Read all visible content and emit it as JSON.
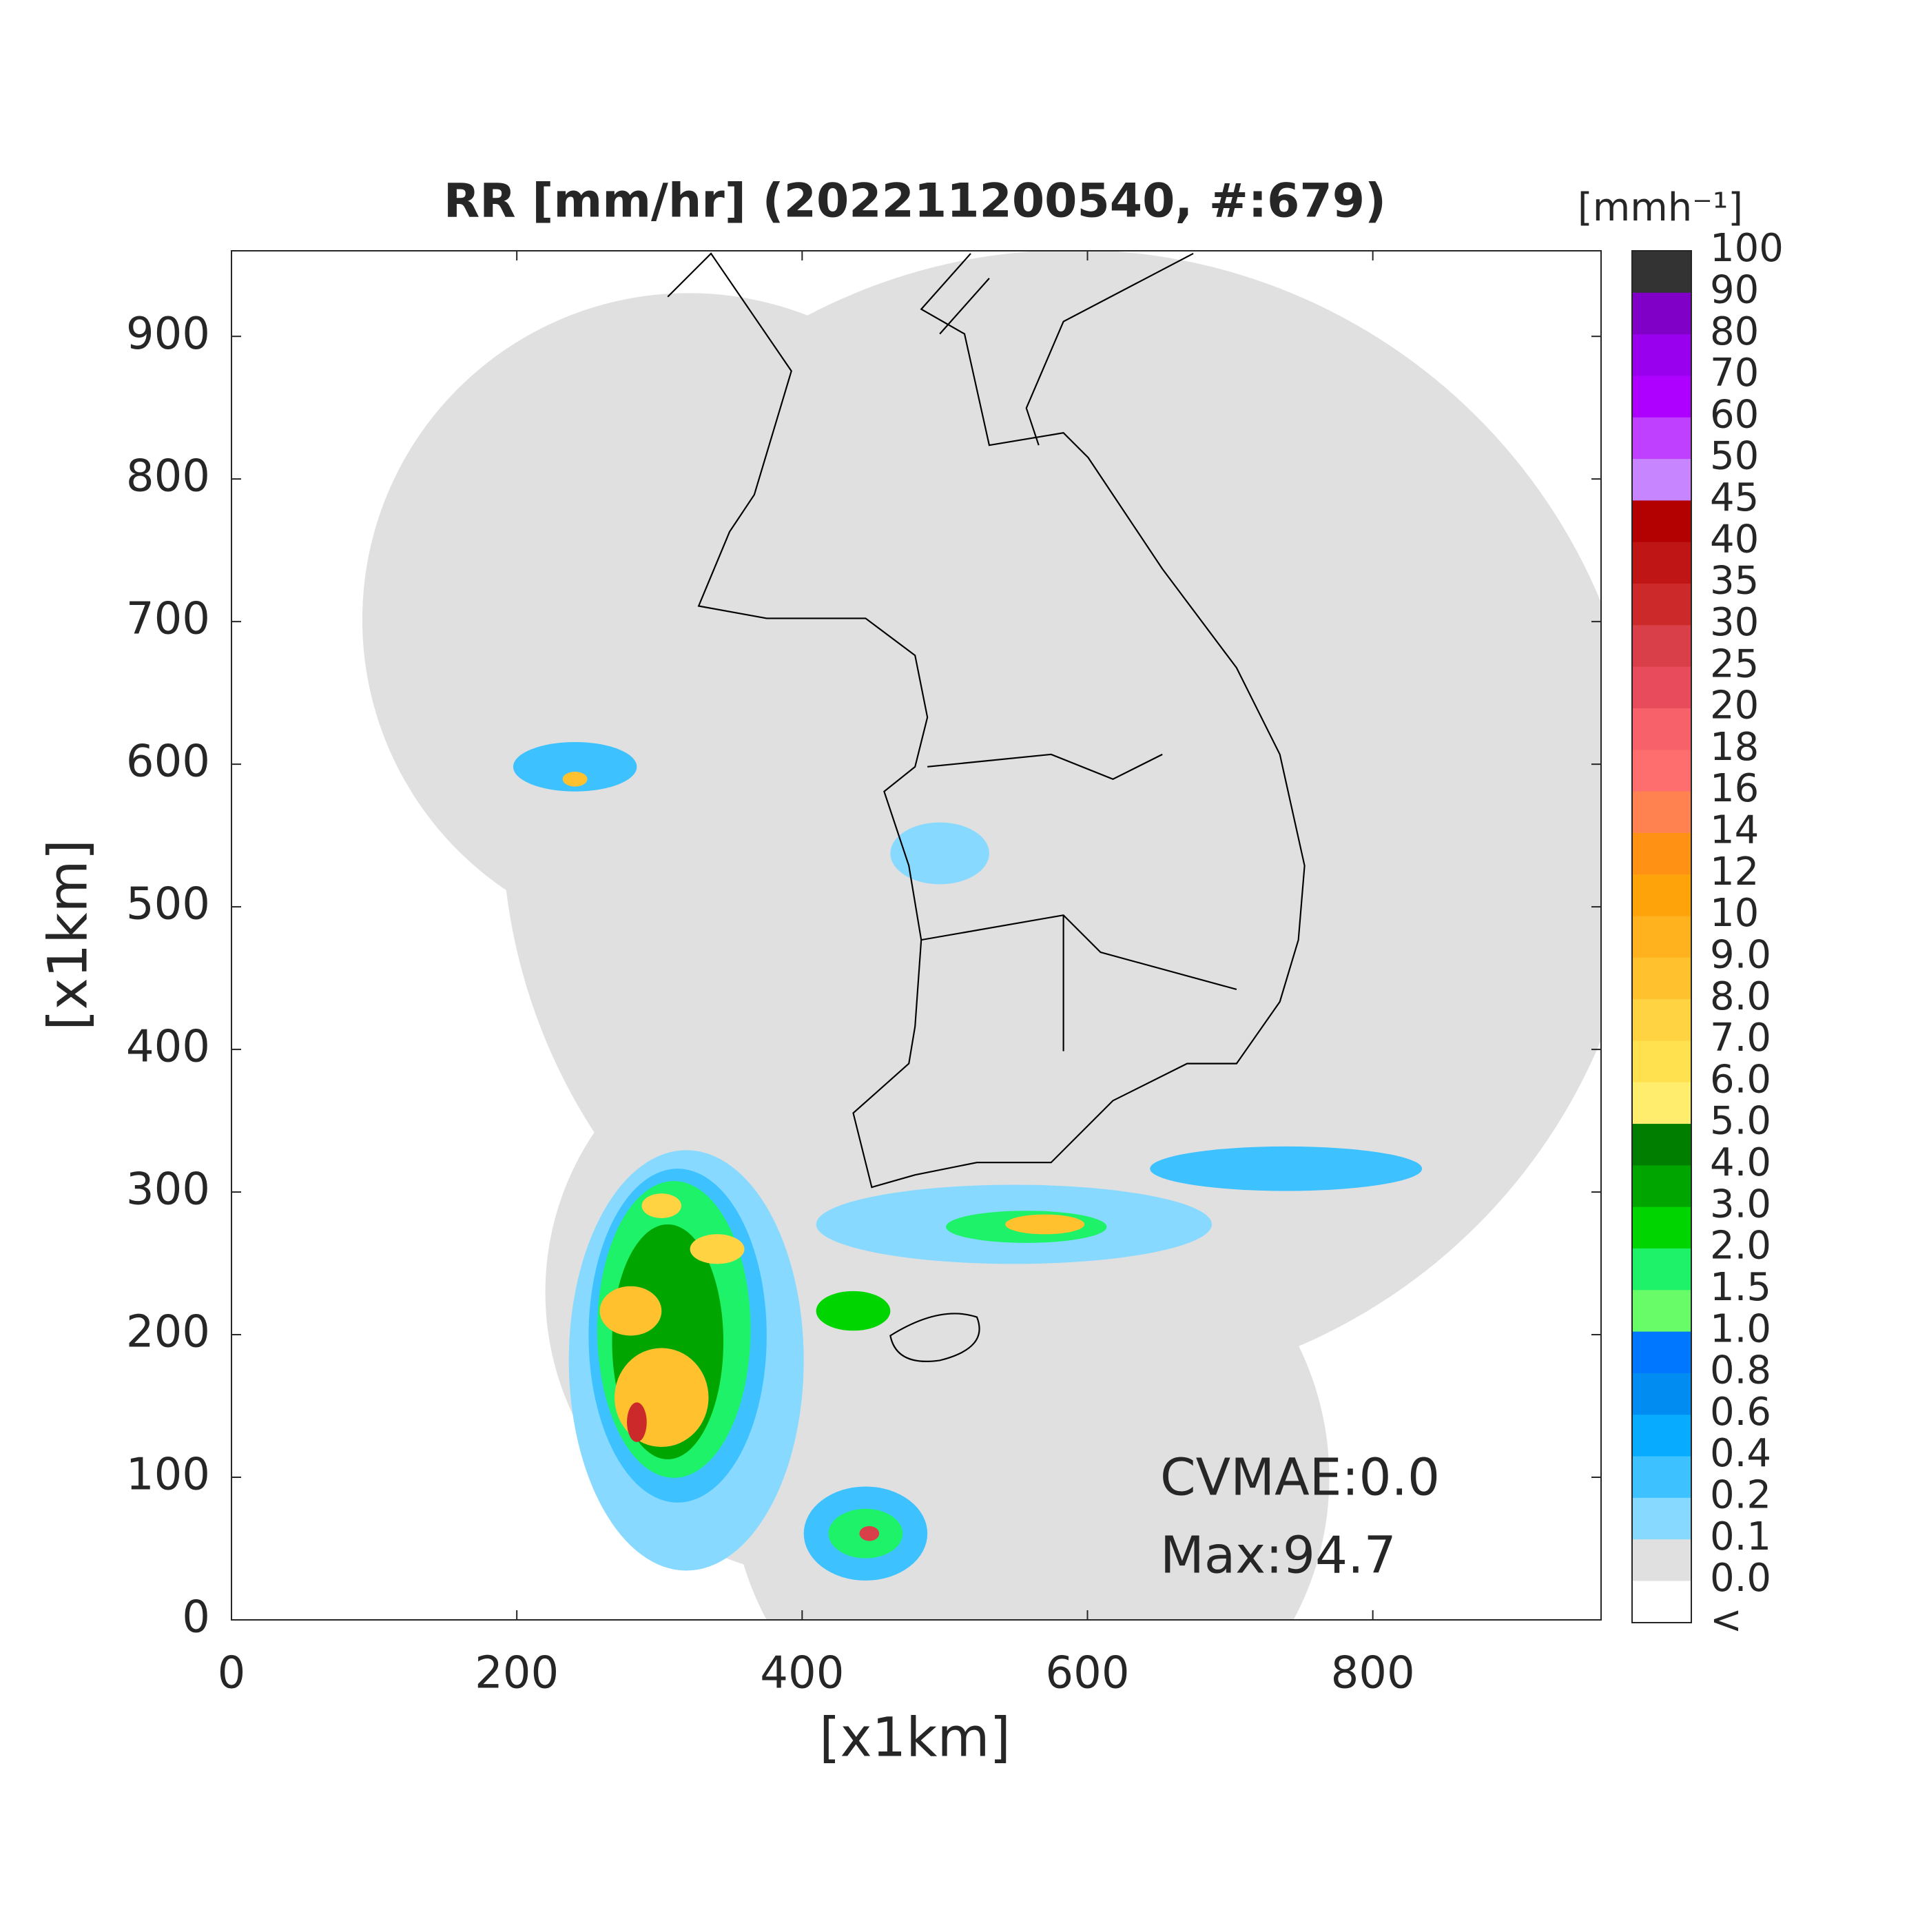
{
  "chart_data": {
    "type": "map",
    "title": "RR [mm/hr] (202211200540, #:679)",
    "xlabel": "[x1km]",
    "ylabel": "[x1km]",
    "xlim": [
      0,
      960
    ],
    "ylim": [
      0,
      960
    ],
    "xticks": [
      0,
      200,
      400,
      600,
      800
    ],
    "yticks": [
      0,
      100,
      200,
      300,
      400,
      500,
      600,
      700,
      800,
      900
    ],
    "annotations": [
      "CVMAE:0.0",
      "Max:94.7"
    ],
    "colorbar": {
      "label": "[mmh⁻¹]",
      "under_label": "<",
      "under_color": "#ffffff",
      "ticks": [
        {
          "value": 0,
          "label": "0.0"
        },
        0.1,
        0.2,
        0.4,
        0.6,
        0.8,
        {
          "value": 1,
          "label": "1.0"
        },
        1.5,
        {
          "value": 2,
          "label": "2.0"
        },
        {
          "value": 3,
          "label": "3.0"
        },
        {
          "value": 4,
          "label": "4.0"
        },
        {
          "value": 5,
          "label": "5.0"
        },
        {
          "value": 6,
          "label": "6.0"
        },
        {
          "value": 7,
          "label": "7.0"
        },
        {
          "value": 8,
          "label": "8.0"
        },
        {
          "value": 9,
          "label": "9.0"
        },
        10,
        12,
        14,
        16,
        18,
        20,
        25,
        30,
        35,
        40,
        45,
        50,
        60,
        70,
        80,
        90,
        100
      ],
      "colors": [
        "#e0e0e0",
        "#87d9ff",
        "#3ec1ff",
        "#07abff",
        "#008cf0",
        "#0077ff",
        "#69fc69",
        "#1ef269",
        "#00d500",
        "#00a500",
        "#007e00",
        "#ffee6e",
        "#ffe150",
        "#ffd342",
        "#ffc12e",
        "#ffb21e",
        "#ffa30a",
        "#ff9215",
        "#ff8250",
        "#ff6e6e",
        "#f6616a",
        "#e84c5c",
        "#d93f48",
        "#cc2a2a",
        "#bf1515",
        "#b30000",
        "#c785ff",
        "#c040ff",
        "#ad00ff",
        "#9800ee",
        "#8000c8",
        "#333333"
      ]
    }
  }
}
